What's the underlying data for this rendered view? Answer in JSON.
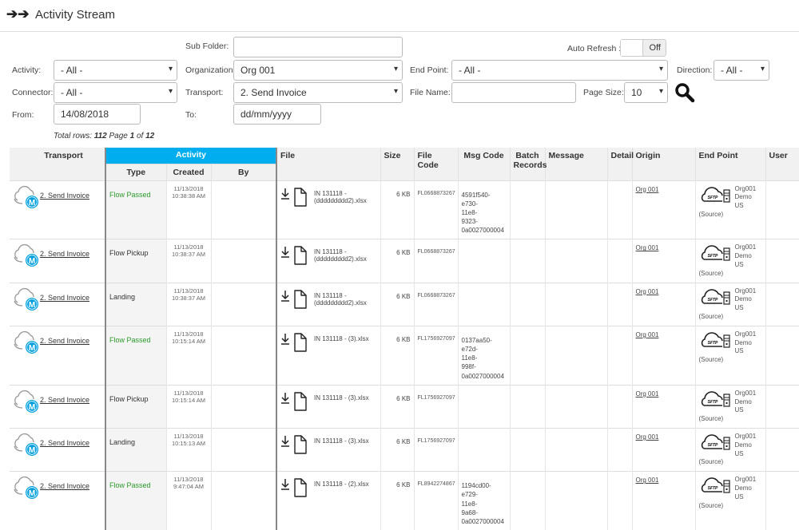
{
  "header": {
    "title": "Activity Stream",
    "icon": "double-arrow-right-icon"
  },
  "filters": {
    "sub_folder_label": "Sub Folder:",
    "sub_folder_value": "",
    "auto_refresh_label": "Auto Refresh :",
    "auto_refresh_value": "Off",
    "activity_label": "Activity:",
    "activity_value": "- All -",
    "organization_label": "Organization:",
    "organization_value": "Org 001",
    "end_point_label": "End Point:",
    "end_point_value": "- All -",
    "direction_label": "Direction:",
    "direction_value": "- All -",
    "connector_label": "Connector:",
    "connector_value": "- All -",
    "transport_label": "Transport:",
    "transport_value": "2. Send Invoice",
    "file_name_label": "File Name:",
    "file_name_value": "",
    "page_size_label": "Page Size:",
    "page_size_value": "10",
    "from_label": "From:",
    "from_value": "14/08/2018",
    "to_label": "To:",
    "to_value": "dd/mm/yyyy"
  },
  "summary": {
    "prefix": "Total rows: ",
    "total": "112",
    "page_text": "  Page ",
    "page": "1",
    "of": " of ",
    "pages": "12"
  },
  "table": {
    "headers": {
      "transport": "Transport",
      "activity": "Activity",
      "type": "Type",
      "created": "Created",
      "by": "By",
      "file": "File",
      "size": "Size",
      "file_code": "File Code",
      "msg_code": "Msg Code",
      "batch_records": "Batch Records",
      "message": "Message",
      "detail": "Detail",
      "origin": "Origin",
      "end_point": "End Point",
      "user": "User"
    },
    "rows": [
      {
        "transport": "2. Send Invoice",
        "type": "Flow Passed",
        "created": "11/13/2018 10:38:38 AM",
        "by": "",
        "file": "IN 131118 - (ddddddddd2).xlsx",
        "size": "6 KB",
        "file_code": "FL0668873267",
        "msg_code": "4591f540-e730-11e8-9323-0a0027000004",
        "origin": "Org 001",
        "end_point": "Org001 Demo US (Source)"
      },
      {
        "transport": "2. Send Invoice",
        "type": "Flow Pickup",
        "created": "11/13/2018 10:38:37 AM",
        "by": "",
        "file": "IN 131118 - (ddddddddd2).xlsx",
        "size": "6 KB",
        "file_code": "FL0668873267",
        "msg_code": "",
        "origin": "Org 001",
        "end_point": "Org001 Demo US (Source)"
      },
      {
        "transport": "2. Send Invoice",
        "type": "Landing",
        "created": "11/13/2018 10:38:37 AM",
        "by": "",
        "file": "IN 131118 - (ddddddddd2).xlsx",
        "size": "6 KB",
        "file_code": "FL0668873267",
        "msg_code": "",
        "origin": "Org 001",
        "end_point": "Org001 Demo US (Source)"
      },
      {
        "transport": "2. Send Invoice",
        "type": "Flow Passed",
        "created": "11/13/2018 10:15:14 AM",
        "by": "",
        "file": "IN 131118 - (3).xlsx",
        "size": "6 KB",
        "file_code": "FL1756927097",
        "msg_code": "0137aa50-e72d-11e8-998f-0a0027000004",
        "origin": "Org 001",
        "end_point": "Org001 Demo US (Source)"
      },
      {
        "transport": "2. Send Invoice",
        "type": "Flow Pickup",
        "created": "11/13/2018 10:15:14 AM",
        "by": "",
        "file": "IN 131118 - (3).xlsx",
        "size": "6 KB",
        "file_code": "FL1756927097",
        "msg_code": "",
        "origin": "Org 001",
        "end_point": "Org001 Demo US (Source)"
      },
      {
        "transport": "2. Send Invoice",
        "type": "Landing",
        "created": "11/13/2018 10:15:13 AM",
        "by": "",
        "file": "IN 131118 - (3).xlsx",
        "size": "6 KB",
        "file_code": "FL1756927097",
        "msg_code": "",
        "origin": "Org 001",
        "end_point": "Org001 Demo US (Source)"
      },
      {
        "transport": "2. Send Invoice",
        "type": "Flow Passed",
        "created": "11/13/2018 9:47:04 AM",
        "by": "",
        "file": "IN 131118 - (2).xlsx",
        "size": "6 KB",
        "file_code": "FL8942274867",
        "msg_code": "1194cd00-e729-11e8-9a68-0a0027000004",
        "origin": "Org 001",
        "end_point": "Org001 Demo US (Source)"
      }
    ],
    "sftp_label": "SFTP"
  },
  "colors": {
    "accent": "#00aeef",
    "passed": "#2a9a2a",
    "mule": "#00a0df"
  }
}
